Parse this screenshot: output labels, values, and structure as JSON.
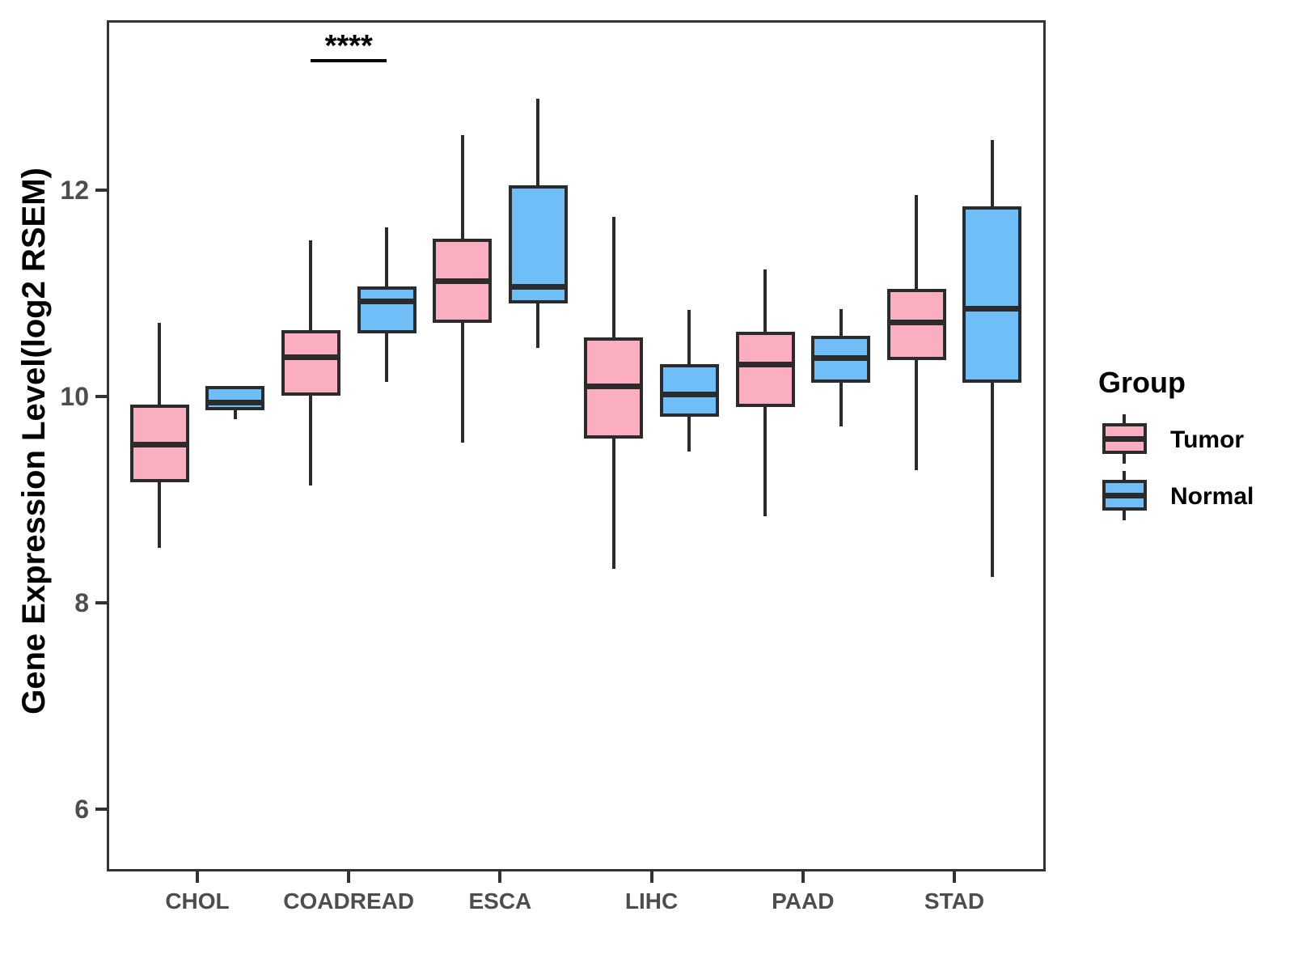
{
  "y_axis": {
    "title": "Gene Expression Level(log2 RSEM)",
    "ticks": [
      "6",
      "8",
      "10",
      "12"
    ],
    "tick_values": [
      6,
      8,
      10,
      12
    ]
  },
  "x_axis": {
    "categories": [
      "CHOL",
      "COADREAD",
      "ESCA",
      "LIHC",
      "PAAD",
      "STAD"
    ]
  },
  "legend": {
    "title": "Group",
    "items": [
      {
        "label": "Tumor",
        "color": "#fbaec0"
      },
      {
        "label": "Normal",
        "color": "#6fbef7"
      }
    ]
  },
  "annotation": {
    "text": "****",
    "category": "COADREAD"
  },
  "colors": {
    "tumor_fill": "#fbaec0",
    "normal_fill": "#6fbef7",
    "box_stroke": "#2b2b2b",
    "panel_border": "#333333",
    "tick_label": "#4d4d4d"
  },
  "chart_data": {
    "type": "boxplot",
    "title": "",
    "xlabel": "",
    "ylabel": "Gene Expression Level(log2 RSEM)",
    "ylim": [
      5.4,
      13.65
    ],
    "grid": false,
    "legend_position": "right",
    "categories": [
      "CHOL",
      "COADREAD",
      "ESCA",
      "LIHC",
      "PAAD",
      "STAD"
    ],
    "series": [
      {
        "name": "Tumor",
        "color": "#fbaec0",
        "boxes": [
          {
            "category": "CHOL",
            "whisker_low": 8.53,
            "q1": 9.17,
            "median": 9.53,
            "q3": 9.92,
            "whisker_high": 10.71
          },
          {
            "category": "COADREAD",
            "whisker_low": 9.14,
            "q1": 10.01,
            "median": 10.38,
            "q3": 10.64,
            "whisker_high": 11.51
          },
          {
            "category": "ESCA",
            "whisker_low": 9.55,
            "q1": 10.71,
            "median": 11.12,
            "q3": 11.53,
            "whisker_high": 12.53
          },
          {
            "category": "LIHC",
            "whisker_low": 8.33,
            "q1": 9.59,
            "median": 10.1,
            "q3": 10.57,
            "whisker_high": 11.74
          },
          {
            "category": "PAAD",
            "whisker_low": 8.84,
            "q1": 9.9,
            "median": 10.31,
            "q3": 10.63,
            "whisker_high": 11.23
          },
          {
            "category": "STAD",
            "whisker_low": 9.29,
            "q1": 10.35,
            "median": 10.72,
            "q3": 11.04,
            "whisker_high": 11.95
          }
        ]
      },
      {
        "name": "Normal",
        "color": "#6fbef7",
        "boxes": [
          {
            "category": "CHOL",
            "whisker_low": 9.78,
            "q1": 9.87,
            "median": 9.94,
            "q3": 10.1,
            "whisker_high": 10.1
          },
          {
            "category": "COADREAD",
            "whisker_low": 10.14,
            "q1": 10.61,
            "median": 10.92,
            "q3": 11.07,
            "whisker_high": 11.64
          },
          {
            "category": "ESCA",
            "whisker_low": 10.47,
            "q1": 10.9,
            "median": 11.06,
            "q3": 12.05,
            "whisker_high": 12.89
          },
          {
            "category": "LIHC",
            "whisker_low": 9.47,
            "q1": 9.8,
            "median": 10.02,
            "q3": 10.31,
            "whisker_high": 10.84
          },
          {
            "category": "PAAD",
            "whisker_low": 9.71,
            "q1": 10.13,
            "median": 10.37,
            "q3": 10.59,
            "whisker_high": 10.85
          },
          {
            "category": "STAD",
            "whisker_low": 8.25,
            "q1": 10.13,
            "median": 10.85,
            "q3": 11.84,
            "whisker_high": 12.49
          }
        ]
      }
    ],
    "significance": {
      "category": "COADREAD",
      "label": "****"
    }
  }
}
